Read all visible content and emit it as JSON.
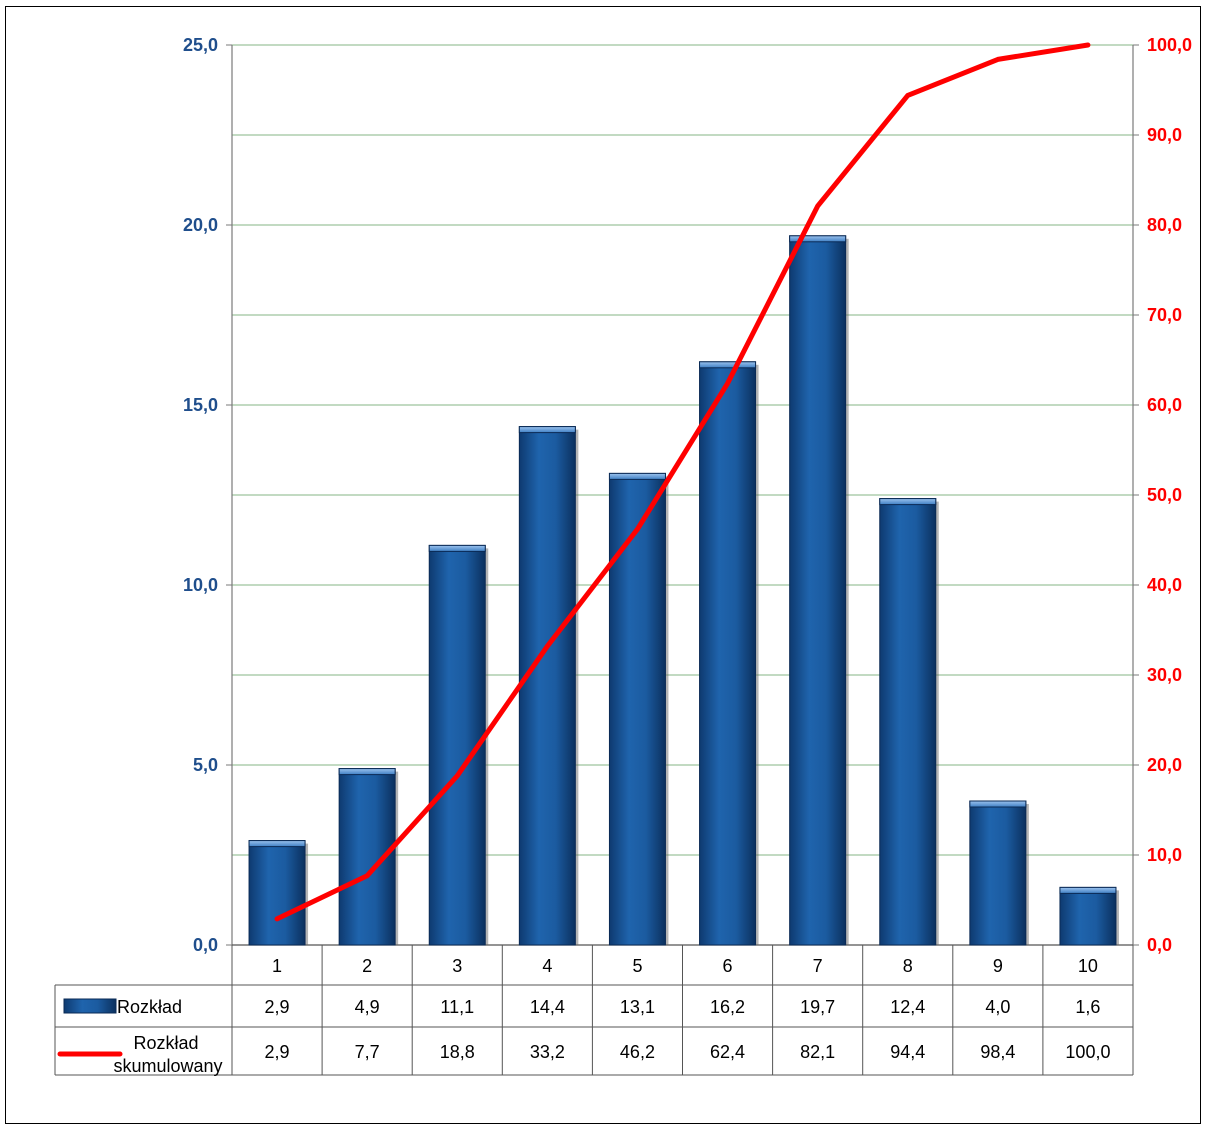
{
  "chart_data": {
    "type": "bar",
    "categories": [
      "1",
      "2",
      "3",
      "4",
      "5",
      "6",
      "7",
      "8",
      "9",
      "10"
    ],
    "series": [
      {
        "name": "Rozkład",
        "kind": "bar",
        "axis": "left",
        "color": "#1f5fa6",
        "values": [
          2.9,
          4.9,
          11.1,
          14.4,
          13.1,
          16.2,
          19.7,
          12.4,
          4.0,
          1.6
        ],
        "labels": [
          "2,9",
          "4,9",
          "11,1",
          "14,4",
          "13,1",
          "16,2",
          "19,7",
          "12,4",
          "4,0",
          "1,6"
        ]
      },
      {
        "name": "Rozkład skumulowany",
        "name_lines": [
          "Rozkład",
          "skumulowany"
        ],
        "kind": "line",
        "axis": "right",
        "color": "#ff0000",
        "values": [
          2.9,
          7.7,
          18.8,
          33.2,
          46.2,
          62.4,
          82.1,
          94.4,
          98.4,
          100.0
        ],
        "labels": [
          "2,9",
          "7,7",
          "18,8",
          "33,2",
          "46,2",
          "62,4",
          "82,1",
          "94,4",
          "98,4",
          "100,0"
        ]
      }
    ],
    "y_left": {
      "ylim": [
        0,
        25
      ],
      "ticks": [
        0,
        5,
        10,
        15,
        20,
        25
      ],
      "tick_labels": [
        "0,0",
        "5,0",
        "10,0",
        "15,0",
        "20,0",
        "25,0"
      ],
      "color": "#1f4e8c"
    },
    "y_right": {
      "ylim": [
        0,
        100
      ],
      "ticks": [
        0,
        10,
        20,
        30,
        40,
        50,
        60,
        70,
        80,
        90,
        100
      ],
      "tick_labels": [
        "0,0",
        "10,0",
        "20,0",
        "30,0",
        "40,0",
        "50,0",
        "60,0",
        "70,0",
        "80,0",
        "90,0",
        "100,0"
      ],
      "color": "#ff0000"
    },
    "grid": true,
    "grid_color": "#9dc49d",
    "data_table": true,
    "title": "",
    "xlabel": "",
    "ylabel": ""
  }
}
